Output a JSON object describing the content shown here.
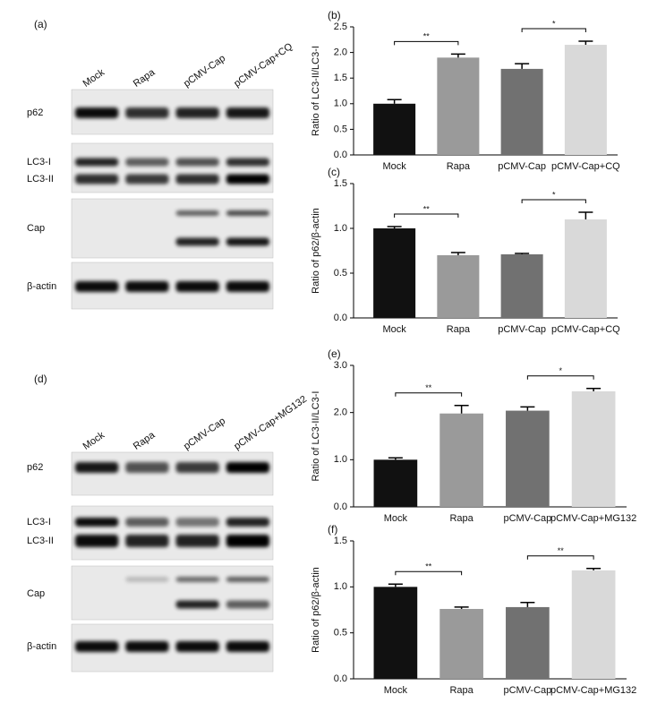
{
  "blots": [
    {
      "panel": "(a)",
      "lanes": [
        "Mock",
        "Rapa",
        "pCMV-Cap",
        "pCMV-Cap+CQ"
      ],
      "rows": [
        "p62",
        "LC3-I",
        "LC3-II",
        "Cap",
        "β-actin"
      ]
    },
    {
      "panel": "(d)",
      "lanes": [
        "Mock",
        "Rapa",
        "pCMV-Cap",
        "pCMV-Cap+MG132"
      ],
      "rows": [
        "p62",
        "LC3-I",
        "LC3-II",
        "Cap",
        "β-actin"
      ]
    }
  ],
  "chart_data": [
    {
      "type": "bar",
      "panel": "(b)",
      "y_label": "Ratio of LC3-II/LC3-I",
      "categories": [
        "Mock",
        "Rapa",
        "pCMV-Cap",
        "pCMV-Cap+CQ"
      ],
      "values": [
        1.0,
        1.9,
        1.68,
        2.15
      ],
      "errors": [
        0.08,
        0.07,
        0.1,
        0.07
      ],
      "colors": [
        "#111111",
        "#9a9a9a",
        "#717171",
        "#d9d9d9"
      ],
      "ylim": [
        0,
        2.5
      ],
      "yticks": [
        {
          "value": 0,
          "label": "0.0"
        },
        0.5,
        {
          "value": 1,
          "label": "1.0"
        },
        1.5,
        {
          "value": 2,
          "label": "2.0"
        },
        2.5
      ],
      "significance": [
        {
          "label": "**",
          "groups": [
            "Mock",
            "Rapa"
          ]
        },
        {
          "label": "*",
          "groups": [
            "pCMV-Cap",
            "pCMV-Cap+CQ"
          ]
        }
      ]
    },
    {
      "type": "bar",
      "panel": "(c)",
      "y_label": "Ratio of p62/β-actin",
      "categories": [
        "Mock",
        "Rapa",
        "pCMV-Cap",
        "pCMV-Cap+CQ"
      ],
      "values": [
        1.0,
        0.7,
        0.71,
        1.1
      ],
      "errors": [
        0.02,
        0.03,
        0.01,
        0.08
      ],
      "colors": [
        "#111111",
        "#9a9a9a",
        "#717171",
        "#d9d9d9"
      ],
      "ylim": [
        0,
        1.5
      ],
      "yticks": [
        {
          "value": 0,
          "label": "0.0"
        },
        0.5,
        {
          "value": 1,
          "label": "1.0"
        },
        1.5
      ],
      "significance": [
        {
          "label": "**",
          "groups": [
            "Mock",
            "Rapa"
          ]
        },
        {
          "label": "*",
          "groups": [
            "pCMV-Cap",
            "pCMV-Cap+CQ"
          ]
        }
      ]
    },
    {
      "type": "bar",
      "panel": "(e)",
      "y_label": "Ratio of LC3-II/LC3-I",
      "categories": [
        "Mock",
        "Rapa",
        "pCMV-Cap",
        "pCMV-Cap+MG132"
      ],
      "values": [
        1.0,
        1.98,
        2.04,
        2.45
      ],
      "errors": [
        0.04,
        0.17,
        0.08,
        0.06
      ],
      "colors": [
        "#111111",
        "#9a9a9a",
        "#717171",
        "#d9d9d9"
      ],
      "ylim": [
        0,
        3
      ],
      "yticks": [
        {
          "value": 0,
          "label": "0.0"
        },
        {
          "value": 1,
          "label": "1.0"
        },
        {
          "value": 2,
          "label": "2.0"
        },
        {
          "value": 3,
          "label": "3.0"
        }
      ],
      "significance": [
        {
          "label": "**",
          "groups": [
            "Mock",
            "Rapa"
          ]
        },
        {
          "label": "*",
          "groups": [
            "pCMV-Cap",
            "pCMV-Cap+MG132"
          ]
        }
      ]
    },
    {
      "type": "bar",
      "panel": "(f)",
      "y_label": "Ratio of p62/β-actin",
      "categories": [
        "Mock",
        "Rapa",
        "pCMV-Cap",
        "pCMV-Cap+MG132"
      ],
      "values": [
        1.0,
        0.76,
        0.78,
        1.18
      ],
      "errors": [
        0.03,
        0.02,
        0.05,
        0.02
      ],
      "colors": [
        "#111111",
        "#9a9a9a",
        "#717171",
        "#d9d9d9"
      ],
      "ylim": [
        0,
        1.5
      ],
      "yticks": [
        {
          "value": 0,
          "label": "0.0"
        },
        0.5,
        {
          "value": 1,
          "label": "1.0"
        },
        1.5
      ],
      "significance": [
        {
          "label": "**",
          "groups": [
            "Mock",
            "Rapa"
          ]
        },
        {
          "label": "**",
          "groups": [
            "pCMV-Cap",
            "pCMV-Cap+MG132"
          ]
        }
      ]
    }
  ]
}
